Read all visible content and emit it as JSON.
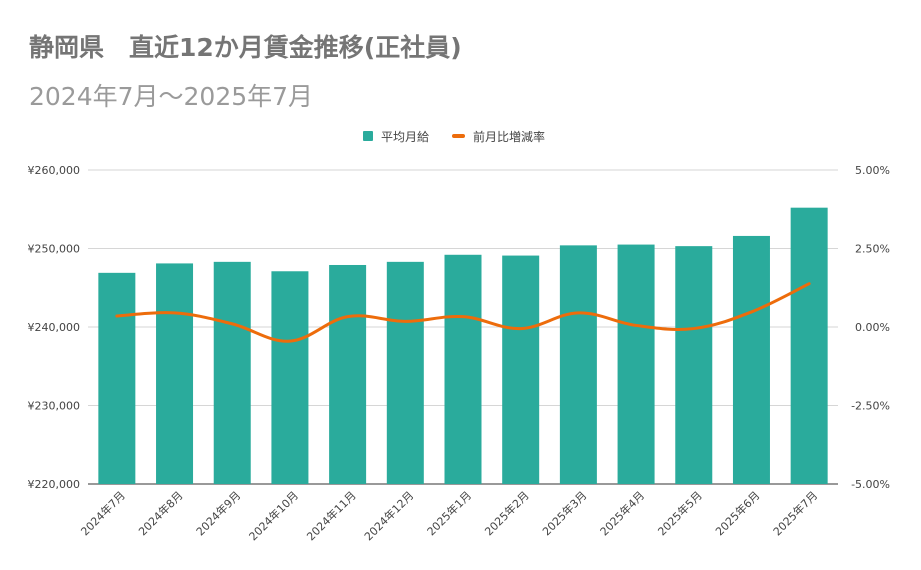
{
  "title": "静岡県　直近12か月賃金推移(正社員)",
  "subtitle": "2024年7月～2025年7月",
  "chart_data": {
    "type": "bar+line",
    "categories": [
      "2024年7月",
      "2024年8月",
      "2024年9月",
      "2024年10月",
      "2024年11月",
      "2024年12月",
      "2025年1月",
      "2025年2月",
      "2025年3月",
      "2025年4月",
      "2025年5月",
      "2025年6月",
      "2025年7月"
    ],
    "series": [
      {
        "name": "平均月給",
        "type": "bar",
        "axis": "left",
        "color": "#2aab9c",
        "values": [
          246900,
          248100,
          248300,
          247100,
          247900,
          248300,
          249200,
          249100,
          250400,
          250500,
          250300,
          251600,
          255200
        ]
      },
      {
        "name": "前月比増減率",
        "type": "line",
        "axis": "right",
        "color": "#ed6c0b",
        "values": [
          0.35,
          0.45,
          0.1,
          -0.45,
          0.33,
          0.18,
          0.33,
          -0.05,
          0.45,
          0.05,
          -0.05,
          0.48,
          1.38
        ]
      }
    ],
    "left_axis": {
      "ylim": [
        220000,
        260000
      ],
      "ticks": [
        220000,
        230000,
        240000,
        250000,
        260000
      ],
      "tick_labels": [
        "¥220,000",
        "¥230,000",
        "¥240,000",
        "¥250,000",
        "¥260,000"
      ]
    },
    "right_axis": {
      "ylim": [
        -5,
        5
      ],
      "ticks": [
        -5,
        -2.5,
        0,
        2.5,
        5
      ],
      "tick_labels": [
        "-5.00%",
        "-2.50%",
        "0.00%",
        "2.50%",
        "5.00%"
      ]
    },
    "grid": true,
    "legend_position": "top-center"
  }
}
